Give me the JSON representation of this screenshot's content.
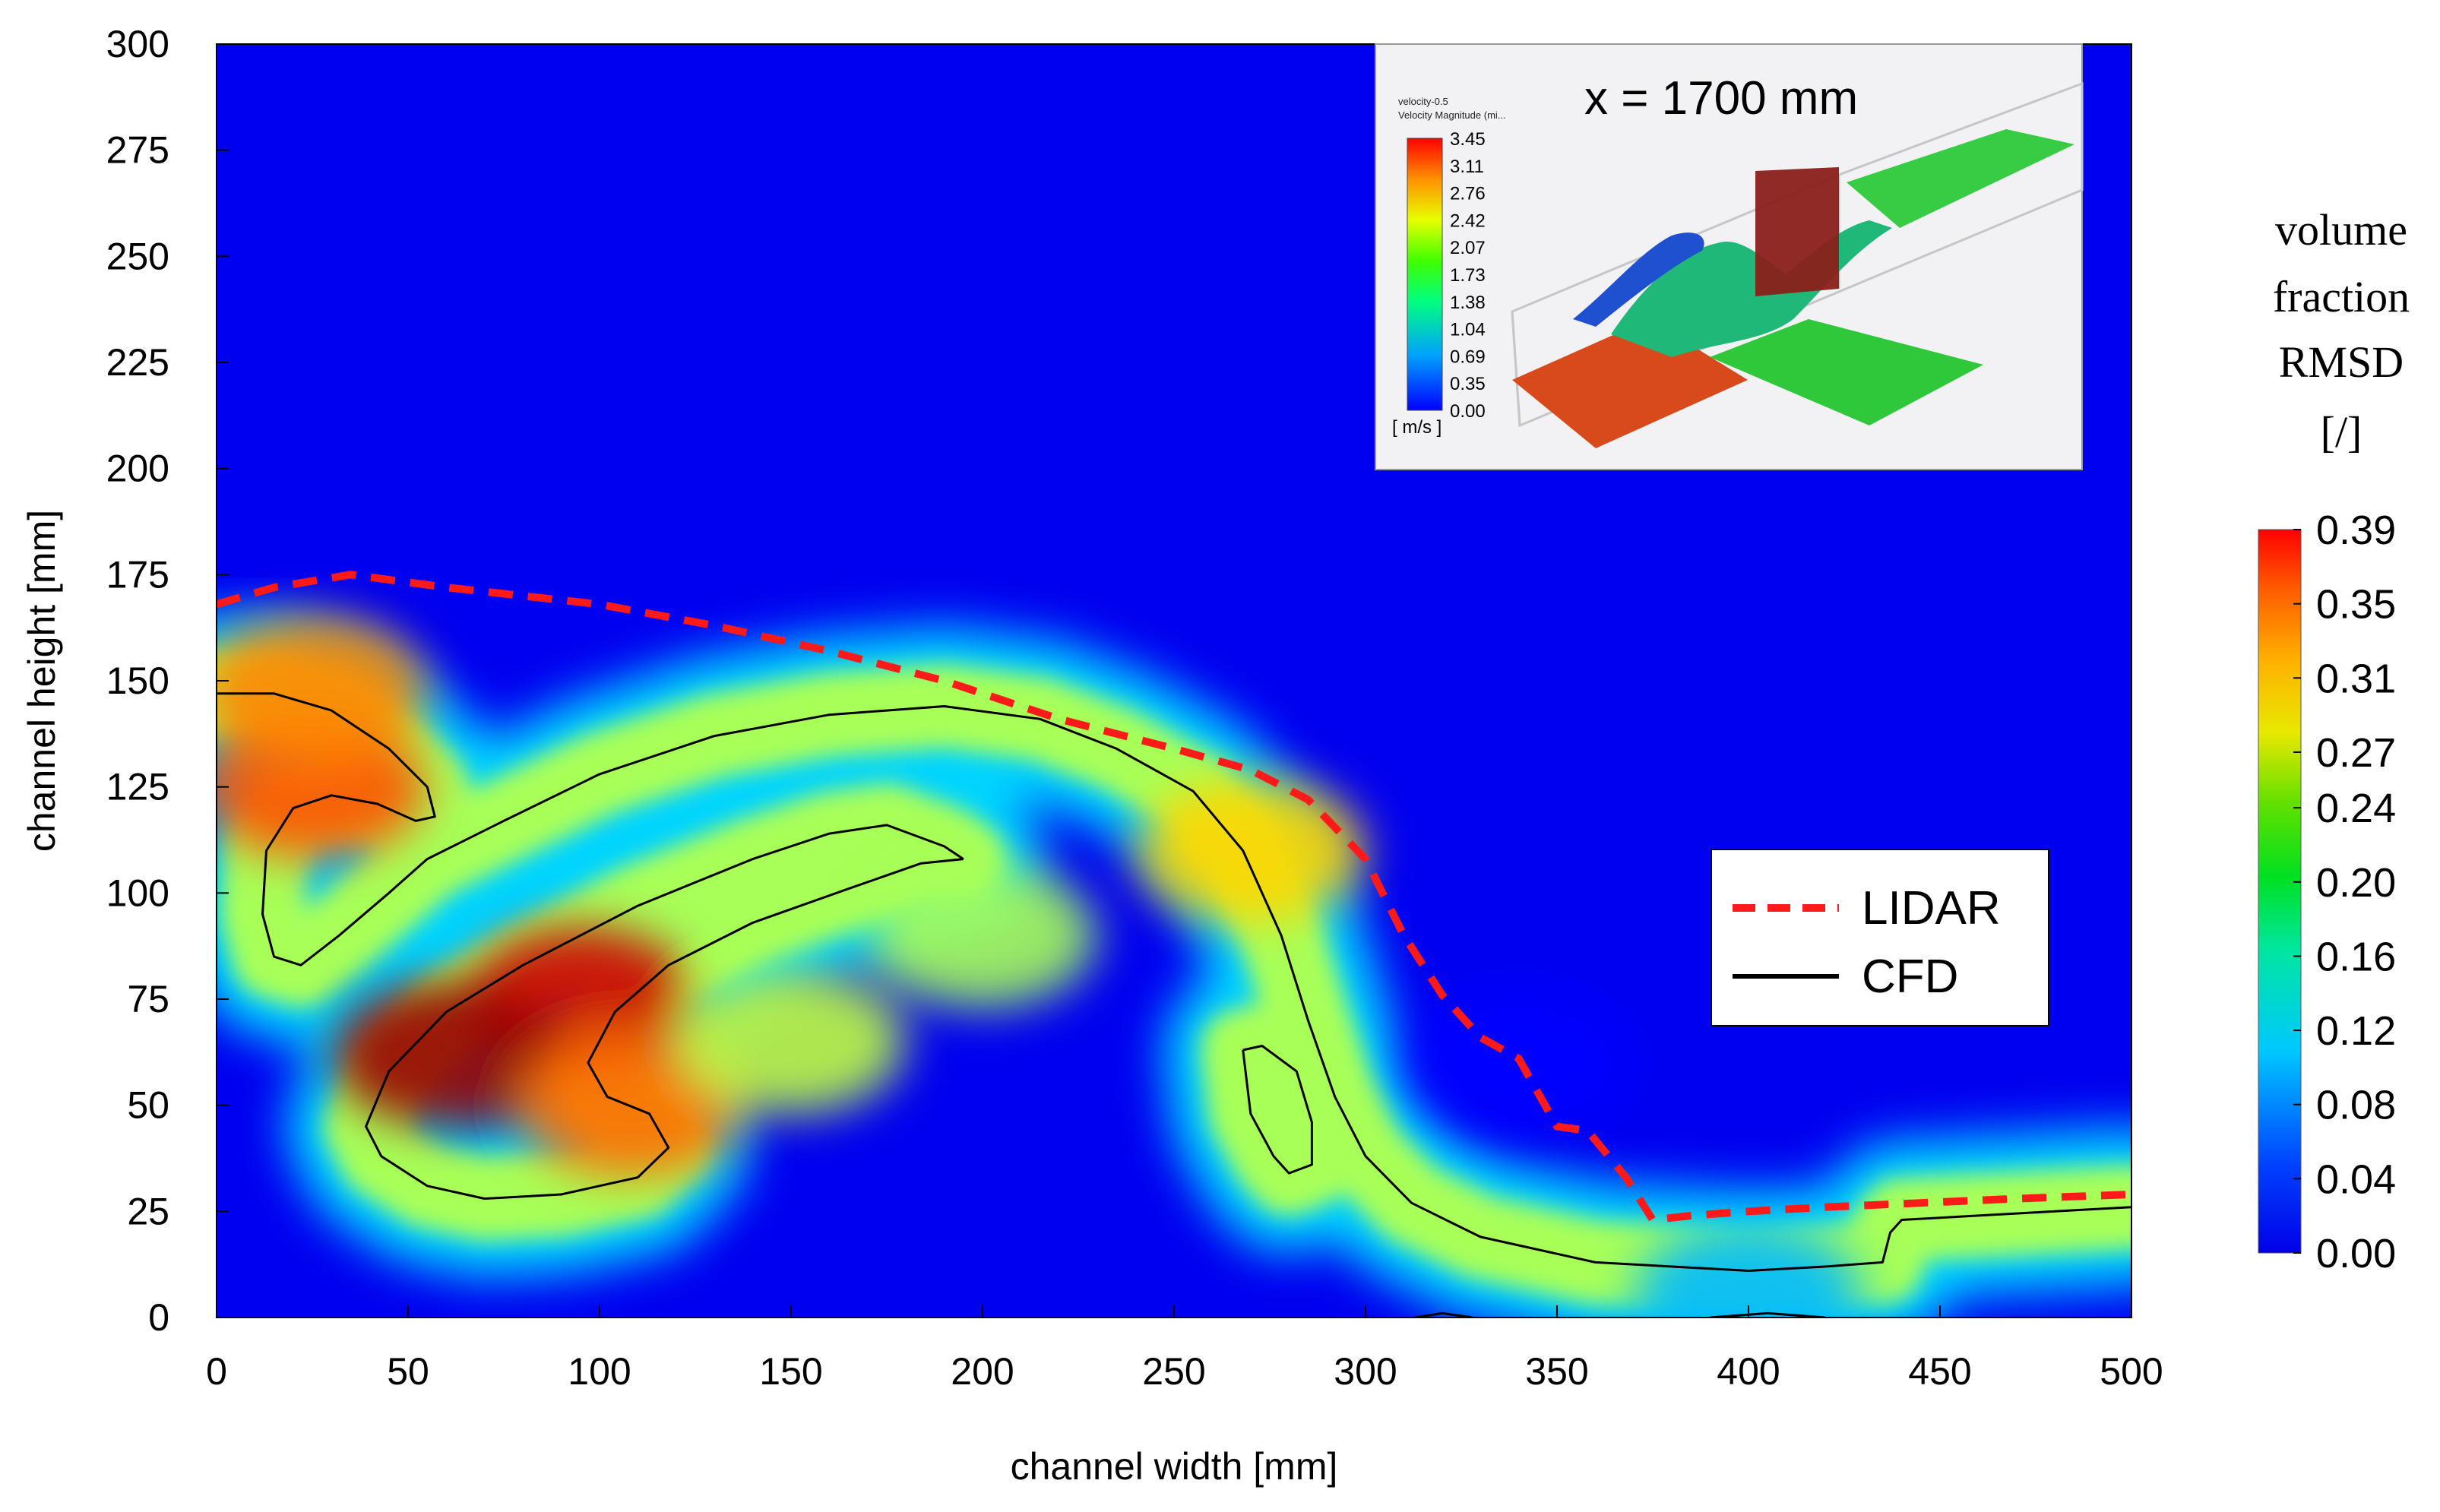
{
  "chart_data": {
    "type": "heatmap",
    "title": "",
    "xlabel": "channel width [mm]",
    "ylabel": "channel height [mm]",
    "xlim": [
      0,
      500
    ],
    "ylim": [
      0,
      300
    ],
    "x_ticks": [
      "0",
      "50",
      "100",
      "150",
      "200",
      "250",
      "300",
      "350",
      "400",
      "450",
      "500"
    ],
    "y_ticks": [
      "0",
      "25",
      "50",
      "75",
      "100",
      "125",
      "150",
      "175",
      "200",
      "225",
      "250",
      "275",
      "300"
    ],
    "grid": false,
    "colorbar": {
      "title_lines": [
        "volume",
        "fraction",
        "RMSD",
        "[/]"
      ],
      "min": 0.0,
      "max": 0.39,
      "ticks": [
        "0.00",
        "0.04",
        "0.08",
        "0.12",
        "0.16",
        "0.20",
        "0.24",
        "0.27",
        "0.31",
        "0.35",
        "0.39"
      ],
      "colormap": "jet"
    },
    "legend": {
      "placement": "right",
      "entries": [
        {
          "label": "LIDAR",
          "style": "dashed",
          "color": "#ff1a1a"
        },
        {
          "label": "CFD",
          "style": "solid",
          "color": "#000000"
        }
      ]
    },
    "series": [
      {
        "name": "LIDAR",
        "points": [
          [
            0,
            168
          ],
          [
            15,
            172
          ],
          [
            35,
            175
          ],
          [
            60,
            172
          ],
          [
            100,
            168
          ],
          [
            130,
            163
          ],
          [
            160,
            157
          ],
          [
            190,
            150
          ],
          [
            220,
            141
          ],
          [
            250,
            134
          ],
          [
            270,
            129
          ],
          [
            285,
            122
          ],
          [
            300,
            108
          ],
          [
            310,
            90
          ],
          [
            320,
            76
          ],
          [
            330,
            66
          ],
          [
            340,
            61
          ],
          [
            350,
            45
          ],
          [
            358,
            44
          ],
          [
            368,
            33
          ],
          [
            375,
            23
          ],
          [
            385,
            24
          ],
          [
            400,
            25
          ],
          [
            420,
            26
          ],
          [
            445,
            27
          ],
          [
            470,
            28
          ],
          [
            500,
            29
          ]
        ]
      },
      {
        "name": "CFD",
        "contours": [
          [
            [
              0,
              147
            ],
            [
              15,
              147
            ],
            [
              30,
              143
            ],
            [
              45,
              134
            ],
            [
              55,
              125
            ],
            [
              57,
              118
            ],
            [
              52,
              117
            ],
            [
              42,
              121
            ],
            [
              30,
              123
            ],
            [
              20,
              120
            ],
            [
              13,
              110
            ],
            [
              12,
              95
            ],
            [
              15,
              85
            ],
            [
              22,
              83
            ],
            [
              32,
              90
            ],
            [
              45,
              100
            ],
            [
              55,
              108
            ],
            [
              75,
              117
            ],
            [
              100,
              128
            ],
            [
              130,
              137
            ],
            [
              160,
              142
            ],
            [
              190,
              144
            ],
            [
              215,
              141
            ],
            [
              235,
              134
            ],
            [
              255,
              124
            ],
            [
              268,
              110
            ],
            [
              278,
              90
            ],
            [
              285,
              70
            ],
            [
              292,
              52
            ],
            [
              300,
              38
            ],
            [
              312,
              27
            ],
            [
              330,
              19
            ],
            [
              360,
              13
            ],
            [
              400,
              11
            ],
            [
              420,
              12
            ],
            [
              435,
              13
            ],
            [
              437,
              20
            ],
            [
              440,
              23
            ],
            [
              460,
              24
            ],
            [
              480,
              25
            ],
            [
              500,
              26
            ]
          ],
          [
            [
              195,
              108
            ],
            [
              190,
              111
            ],
            [
              175,
              116
            ],
            [
              160,
              114
            ],
            [
              140,
              108
            ],
            [
              110,
              97
            ],
            [
              80,
              83
            ],
            [
              60,
              72
            ],
            [
              45,
              58
            ],
            [
              39,
              45
            ],
            [
              43,
              38
            ],
            [
              55,
              31
            ],
            [
              70,
              28
            ],
            [
              90,
              29
            ],
            [
              110,
              33
            ],
            [
              118,
              40
            ],
            [
              113,
              48
            ],
            [
              102,
              52
            ],
            [
              97,
              60
            ],
            [
              104,
              72
            ],
            [
              118,
              83
            ],
            [
              140,
              93
            ],
            [
              165,
              101
            ],
            [
              184,
              107
            ],
            [
              195,
              108
            ]
          ],
          [
            [
              268,
              63
            ],
            [
              270,
              48
            ],
            [
              276,
              38
            ],
            [
              280,
              34
            ],
            [
              286,
              36
            ],
            [
              286,
              46
            ],
            [
              282,
              58
            ],
            [
              273,
              64
            ],
            [
              268,
              63
            ]
          ],
          [
            [
              313,
              0
            ],
            [
              320,
              1
            ],
            [
              328,
              0
            ]
          ],
          [
            [
              390,
              0
            ],
            [
              405,
              1
            ],
            [
              420,
              0
            ]
          ]
        ]
      }
    ],
    "field_regions": [
      {
        "x": 95,
        "y": 75,
        "value": 0.36
      },
      {
        "x": 60,
        "y": 62,
        "value": 0.38
      },
      {
        "x": 25,
        "y": 125,
        "value": 0.31
      },
      {
        "x": 25,
        "y": 148,
        "value": 0.29
      },
      {
        "x": 108,
        "y": 50,
        "value": 0.3
      },
      {
        "x": 150,
        "y": 65,
        "value": 0.22
      },
      {
        "x": 200,
        "y": 90,
        "value": 0.21
      },
      {
        "x": 270,
        "y": 110,
        "value": 0.26
      },
      {
        "x": 340,
        "y": 60,
        "value": 0.05
      },
      {
        "x": 400,
        "y": 5,
        "value": 0.12
      }
    ],
    "inset": {
      "title": "x = 1700 mm",
      "header_lines": [
        "velocity-0.5",
        "Velocity Magnitude (mi..."
      ],
      "colorbar_ticks": [
        "3.45",
        "3.11",
        "2.76",
        "2.42",
        "2.07",
        "1.73",
        "1.38",
        "1.04",
        "0.69",
        "0.35",
        "0.00"
      ],
      "units": "[ m/s ]"
    }
  }
}
